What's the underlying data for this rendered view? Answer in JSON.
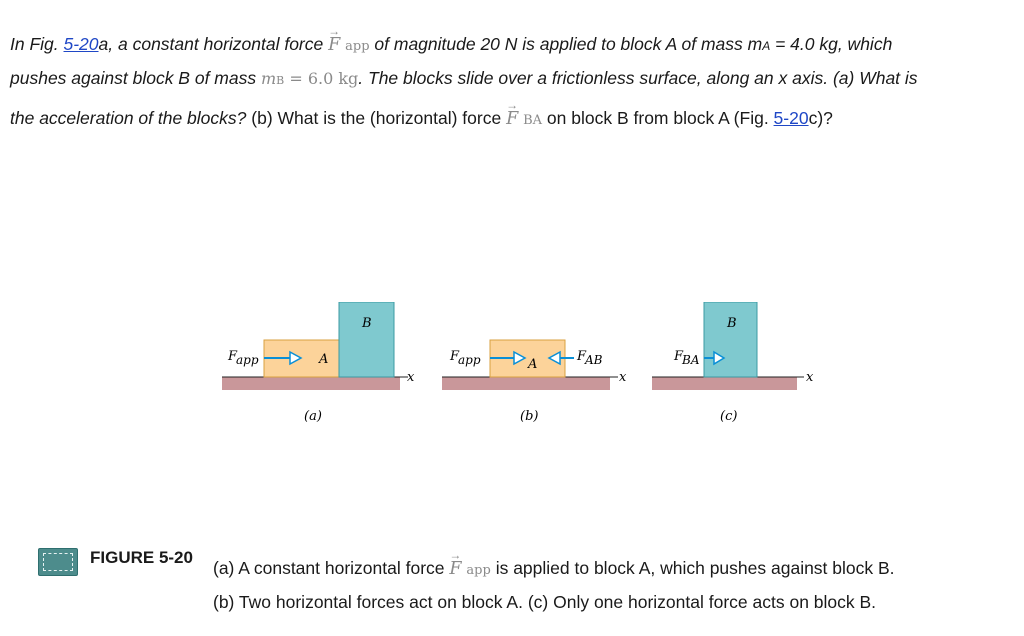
{
  "problem": {
    "l1_prefix": "In Fig. ",
    "fig_link_1": "5-20",
    "l1_mid": "a, a constant horizontal force ",
    "vec_F": "F",
    "vec_arrow": "→",
    "app_sub": "app",
    "l1_suffix": " of magnitude 20 N is applied to block A of mass m",
    "mA_sub": "A",
    "l1_end": " = 4.0 kg, which",
    "l2_prefix": "pushes against block B of mass ",
    "mB_math": "m",
    "mB_sub": "B",
    "mB_value": " = 6.0 kg",
    "l2_suffix": ". The blocks slide over a frictionless surface, along an x axis. (a) What is",
    "l3_prefix": "the acceleration of the blocks?",
    "l3_mid": " (b) What is the (horizontal) force ",
    "BA_sub": "BA",
    "l3_suffix1": " on block B from block A (Fig. ",
    "fig_link_2": "5-20",
    "l3_suffix2": "c)?"
  },
  "figure": {
    "block_A": "A",
    "block_B": "B",
    "F_label": "F",
    "app": "app",
    "AB": "AB",
    "BA": "BA",
    "x_axis": "x",
    "panel_a": "(a)",
    "panel_b": "(b)",
    "panel_c": "(c)"
  },
  "caption": {
    "title": "FIGURE 5-20",
    "icon": "animation-icon",
    "c1_prefix": "(a) A constant horizontal force ",
    "c1_suffix": " is applied to block A, which pushes against block B.",
    "c2": "(b) Two horizontal forces act on block A. (c) Only one horizontal force acts on block B."
  },
  "colors": {
    "block_A": "#fcd39a",
    "block_B": "#7fc9cf",
    "floor": "#c9979a",
    "arrow": "#0a8fd6",
    "link": "#1f47c6"
  }
}
